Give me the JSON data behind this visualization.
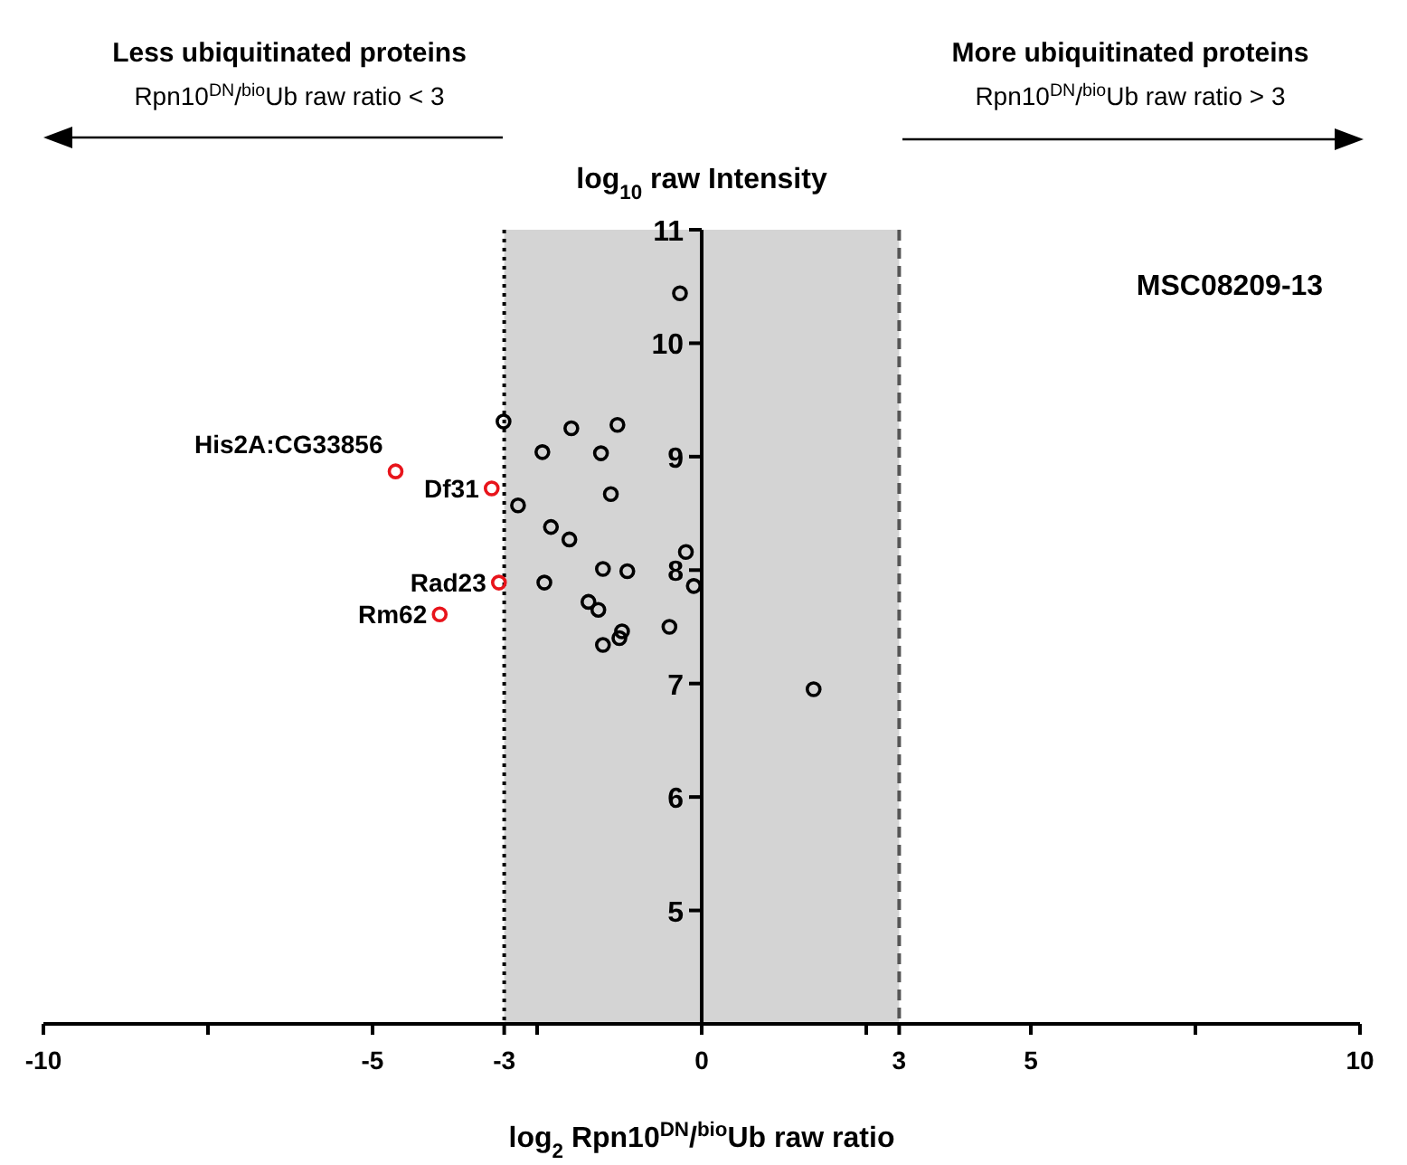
{
  "chart_data": {
    "type": "scatter",
    "xlabel": "log$_{2}$ Rpn10$^{DN}$/$^{bio}$Ub raw ratio",
    "ylabel": "log$_{10}$ raw Intensity",
    "xlim": [
      -10,
      10
    ],
    "ylim": [
      4,
      11
    ],
    "xticks": [
      -10,
      {
        "value": -7.5,
        "label": null
      },
      -5,
      -3,
      {
        "value": -2.5,
        "label": null
      },
      0,
      {
        "value": 2.5,
        "label": null
      },
      3,
      5,
      {
        "value": 7.5,
        "label": null
      },
      10
    ],
    "yticks": [
      5,
      6,
      7,
      8,
      9,
      10,
      11
    ],
    "grid": false,
    "marker": "circle",
    "bands": [
      {
        "axis": "x",
        "from": -3,
        "to": 3,
        "color": "#d4d4d4"
      }
    ],
    "ref_lines": [
      {
        "axis": "x",
        "value": -3,
        "line_style": "dotted",
        "color": "#000000"
      },
      {
        "axis": "x",
        "value": 3,
        "line_style": "dashed",
        "color": "#555555"
      }
    ],
    "series": [
      {
        "color": "#000000",
        "x": [
          -0.33,
          -3.01,
          -1.98,
          -1.28,
          -2.42,
          -1.53,
          -1.38,
          -2.79,
          -2.29,
          -2.01,
          -0.24,
          -1.5,
          -1.13,
          -0.12,
          -2.39,
          -1.72,
          -1.57,
          -1.21,
          -1.25,
          -1.5,
          -0.49,
          1.7
        ],
        "values": [
          10.44,
          9.31,
          9.25,
          9.28,
          9.04,
          9.03,
          8.67,
          8.57,
          8.38,
          8.27,
          8.16,
          8.01,
          7.99,
          7.86,
          7.89,
          7.72,
          7.65,
          7.46,
          7.4,
          7.34,
          7.5,
          6.95
        ]
      },
      {
        "color": "#e8141b",
        "x": [
          -4.65,
          -3.19,
          -3.08,
          -3.98
        ],
        "values": [
          8.87,
          8.72,
          7.89,
          7.61
        ]
      }
    ],
    "annotations": [
      "Less ubiquitinated proteins",
      "Rpn10$^{DN}$/$^{bio}$Ub raw ratio < 3",
      "More ubiquitinated proteins",
      "Rpn10$^{DN}$/$^{bio}$Ub raw ratio > 3",
      "MSC08209-13",
      {
        "text": "His2A:CG33856",
        "x": -4.65,
        "y": 8.87
      },
      {
        "text": "Df31",
        "x": -3.19,
        "y": 8.72
      },
      {
        "text": "Rad23",
        "x": -3.08,
        "y": 7.89
      },
      {
        "text": "Rm62",
        "x": -3.98,
        "y": 7.61
      }
    ]
  }
}
